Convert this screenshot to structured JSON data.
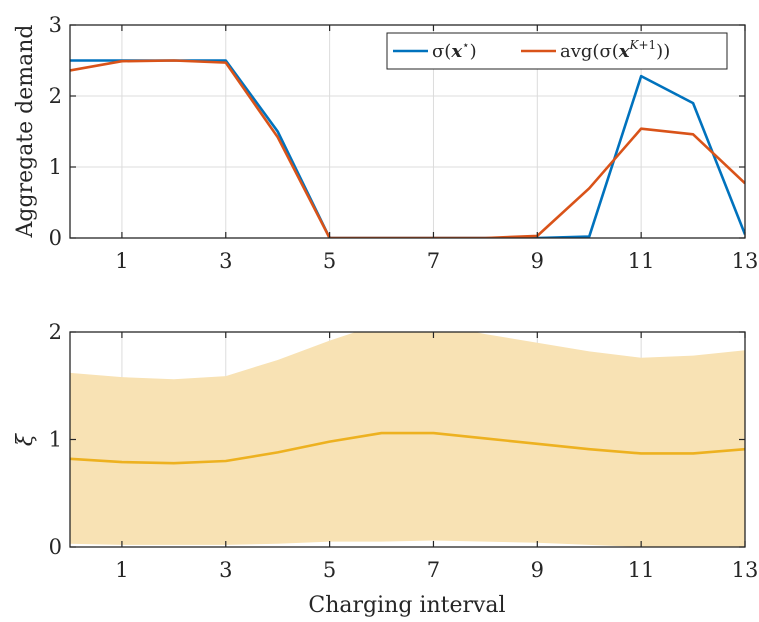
{
  "chart_data": [
    {
      "type": "line",
      "ylabel": "Aggregate demand",
      "xlabel": "",
      "xlim": [
        0,
        13
      ],
      "ylim": [
        0,
        3
      ],
      "xticks": [
        "1",
        "3",
        "5",
        "7",
        "9",
        "11",
        "13"
      ],
      "yticks": [
        "0",
        "1",
        "2",
        "3"
      ],
      "grid": true,
      "legend_position": "top-right",
      "x": [
        0,
        1,
        2,
        3,
        4,
        5,
        6,
        7,
        8,
        9,
        10,
        11,
        12,
        13
      ],
      "series": [
        {
          "name": "σ(x*)",
          "color": "#0072BD",
          "values": [
            2.5,
            2.5,
            2.5,
            2.5,
            1.5,
            0.0,
            0.0,
            0.0,
            0.0,
            0.0,
            0.02,
            2.28,
            1.9,
            0.05
          ]
        },
        {
          "name": "avg(σ(x^{K+1}))",
          "color": "#D95319",
          "values": [
            2.36,
            2.49,
            2.5,
            2.47,
            1.42,
            0.0,
            0.0,
            0.0,
            0.0,
            0.03,
            0.7,
            1.54,
            1.46,
            0.77
          ]
        }
      ]
    },
    {
      "type": "area",
      "ylabel": "ξ",
      "xlabel": "Charging interval",
      "xlim": [
        0,
        13
      ],
      "ylim": [
        0,
        2
      ],
      "xticks": [
        "1",
        "3",
        "5",
        "7",
        "9",
        "11",
        "13"
      ],
      "yticks": [
        "0",
        "1",
        "2"
      ],
      "grid": true,
      "x": [
        0,
        1,
        2,
        3,
        4,
        5,
        6,
        7,
        8,
        9,
        10,
        11,
        12,
        13
      ],
      "series": [
        {
          "color": "#EDB120",
          "band_color": "#F8E2B4",
          "values": [
            0.82,
            0.79,
            0.78,
            0.8,
            0.88,
            0.98,
            1.06,
            1.06,
            1.01,
            0.96,
            0.91,
            0.87,
            0.87,
            0.91
          ],
          "lower": [
            0.03,
            0.02,
            0.02,
            0.02,
            0.03,
            0.05,
            0.05,
            0.06,
            0.05,
            0.04,
            0.02,
            0.0,
            0.0,
            0.0
          ],
          "upper": [
            1.62,
            1.58,
            1.56,
            1.59,
            1.74,
            1.92,
            2.08,
            2.08,
            1.98,
            1.9,
            1.82,
            1.76,
            1.78,
            1.83
          ]
        }
      ]
    }
  ]
}
